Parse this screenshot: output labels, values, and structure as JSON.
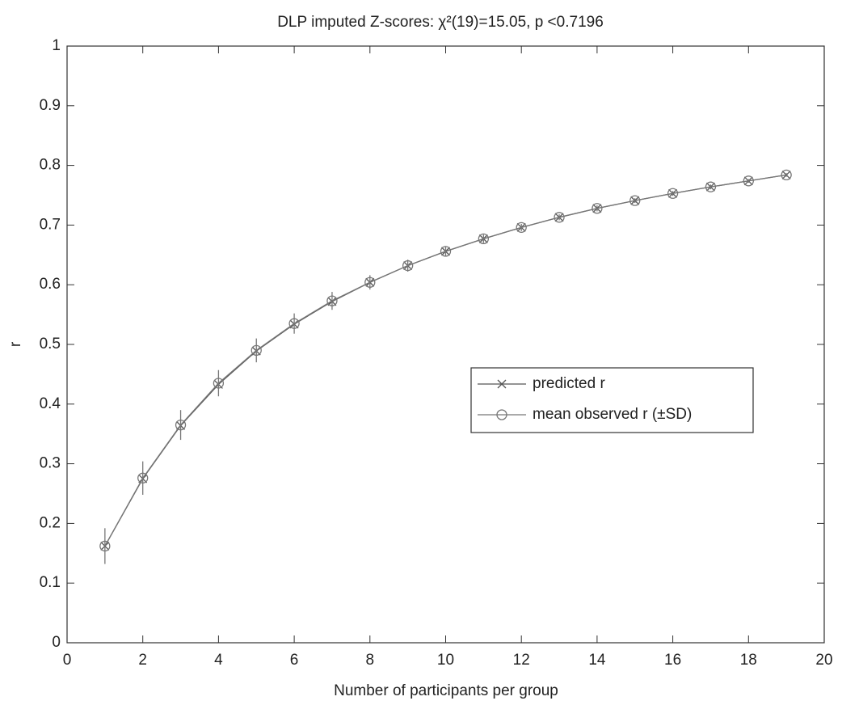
{
  "chart_data": {
    "type": "line",
    "title": "DLP imputed Z-scores: χ²(19)=15.05, p <0.7196",
    "xlabel": "Number of participants per group",
    "ylabel": "r",
    "x": [
      1,
      2,
      3,
      4,
      5,
      6,
      7,
      8,
      9,
      10,
      11,
      12,
      13,
      14,
      15,
      16,
      17,
      18,
      19
    ],
    "series": [
      {
        "name": "predicted r",
        "color": "#555555",
        "marker": "x",
        "values": [
          0.162,
          0.275,
          0.364,
          0.433,
          0.489,
          0.534,
          0.572,
          0.604,
          0.632,
          0.656,
          0.677,
          0.696,
          0.713,
          0.728,
          0.741,
          0.753,
          0.764,
          0.774,
          0.784
        ]
      },
      {
        "name": "mean observed r (±SD)",
        "color": "#777777",
        "marker": "o",
        "values": [
          0.162,
          0.276,
          0.365,
          0.435,
          0.49,
          0.535,
          0.573,
          0.604,
          0.632,
          0.656,
          0.677,
          0.696,
          0.713,
          0.728,
          0.741,
          0.753,
          0.764,
          0.774,
          0.784
        ],
        "errors": [
          0.03,
          0.028,
          0.025,
          0.022,
          0.02,
          0.017,
          0.015,
          0.012,
          0.01,
          0.008,
          0.007,
          0.006,
          0.005,
          0.005,
          0.004,
          0.004,
          0.004,
          0.003,
          0.003
        ]
      }
    ],
    "xlim": [
      0,
      20
    ],
    "xticks": [
      0,
      2,
      4,
      6,
      8,
      10,
      12,
      14,
      16,
      18,
      20
    ],
    "ylim": [
      0,
      1
    ],
    "yticks": [
      0,
      0.1,
      0.2,
      0.3,
      0.4,
      0.5,
      0.6,
      0.7,
      0.8,
      0.9,
      1
    ],
    "grid": false,
    "legend": "right"
  }
}
